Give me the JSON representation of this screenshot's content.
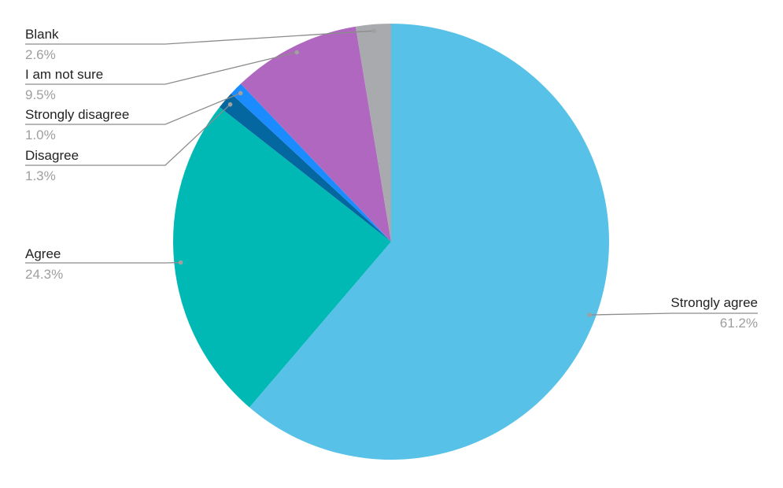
{
  "chart_data": {
    "type": "pie",
    "title": "",
    "start_angle_deg": 0,
    "direction": "clockwise",
    "slices": [
      {
        "label": "Strongly agree",
        "value": 61.2,
        "value_label": "61.2%",
        "color": "#57C1E8"
      },
      {
        "label": "Agree",
        "value": 24.3,
        "value_label": "24.3%",
        "color": "#00B8B4"
      },
      {
        "label": "Disagree",
        "value": 1.3,
        "value_label": "1.3%",
        "color": "#0567A0"
      },
      {
        "label": "Strongly disagree",
        "value": 1.0,
        "value_label": "1.0%",
        "color": "#1A8CFF"
      },
      {
        "label": "I am not sure",
        "value": 9.5,
        "value_label": "9.5%",
        "color": "#B067BF"
      },
      {
        "label": "Blank",
        "value": 2.6,
        "value_label": "2.6%",
        "color": "#A9AAAD"
      }
    ],
    "leader_line_color": "#8c8c8c",
    "label_color": "#222222",
    "value_label_color": "#9e9e9e"
  }
}
